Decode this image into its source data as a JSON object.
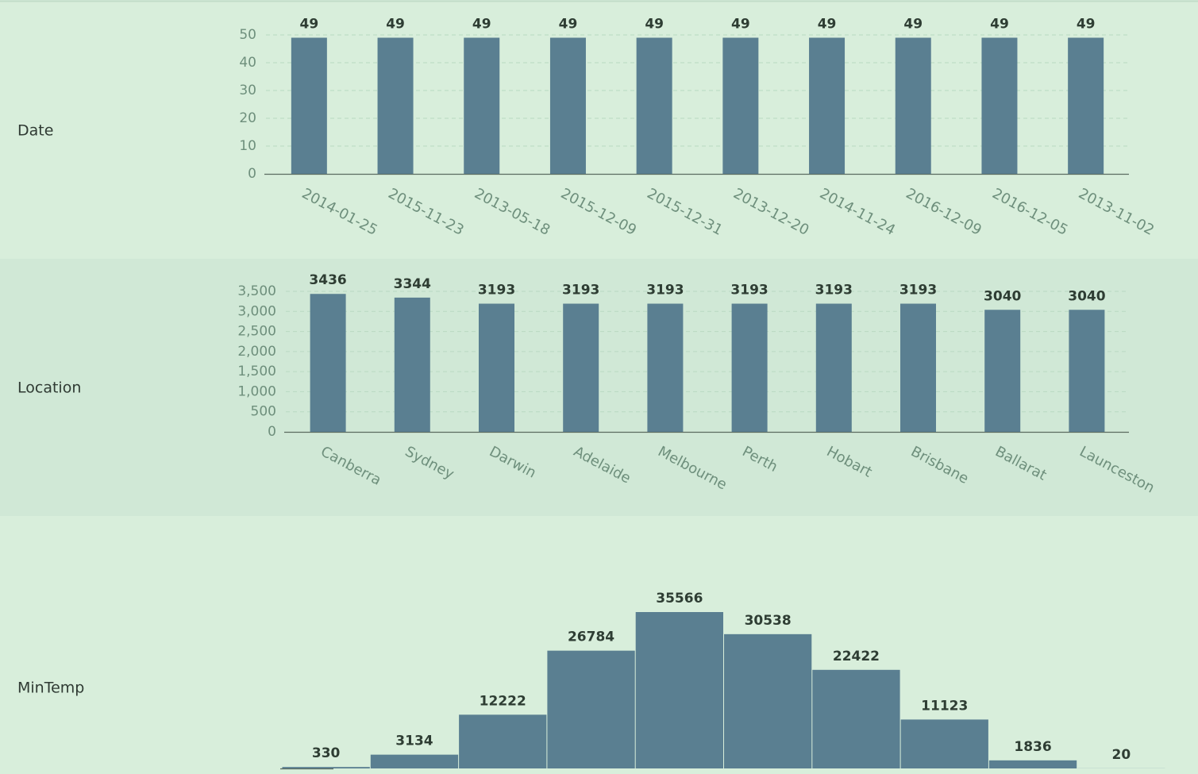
{
  "chart_data": [
    {
      "type": "bar",
      "title": "Date",
      "categories": [
        "2014-01-25",
        "2015-11-23",
        "2013-05-18",
        "2015-12-09",
        "2015-12-31",
        "2013-12-20",
        "2014-11-24",
        "2016-12-09",
        "2016-12-05",
        "2013-11-02"
      ],
      "values": [
        49,
        49,
        49,
        49,
        49,
        49,
        49,
        49,
        49,
        49
      ],
      "color": "#5a7f91",
      "ylim": [
        0,
        50
      ],
      "yticks": [
        0,
        10,
        20,
        30,
        40,
        50
      ],
      "grid": true
    },
    {
      "type": "bar",
      "title": "Location",
      "categories": [
        "Canberra",
        "Sydney",
        "Darwin",
        "Adelaide",
        "Melbourne",
        "Perth",
        "Hobart",
        "Brisbane",
        "Ballarat",
        "Launceston"
      ],
      "values": [
        3436,
        3344,
        3193,
        3193,
        3193,
        3193,
        3193,
        3193,
        3040,
        3040
      ],
      "color": "#5a7f91",
      "ylim": [
        0,
        3500
      ],
      "yticks": [
        0,
        500,
        {
          "value": 1000,
          "label": "1,000"
        },
        {
          "value": 1500,
          "label": "1,500"
        },
        {
          "value": 2000,
          "label": "2,000"
        },
        {
          "value": 2500,
          "label": "2,500"
        },
        {
          "value": 3000,
          "label": "3,000"
        },
        {
          "value": 3500,
          "label": "3,500"
        }
      ],
      "grid": true
    },
    {
      "type": "histogram",
      "title": "MinTemp",
      "categories": [
        null,
        null,
        null,
        null,
        null,
        null,
        null,
        null,
        null,
        null
      ],
      "values": [
        330,
        3134,
        12222,
        26784,
        35566,
        30538,
        22422,
        11123,
        1836,
        20
      ],
      "color": "#5a7f91",
      "grid": false
    }
  ]
}
